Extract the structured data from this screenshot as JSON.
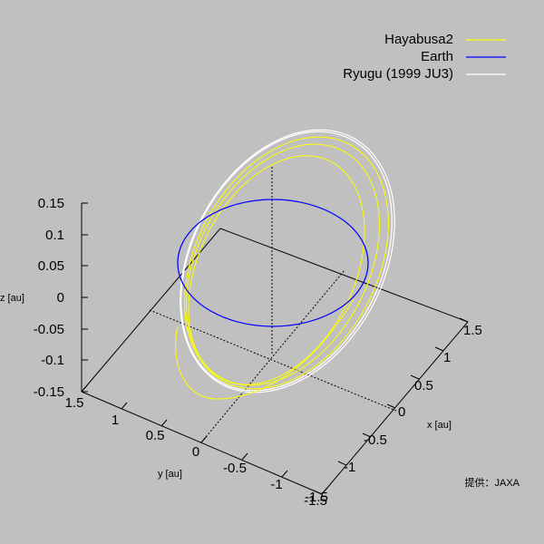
{
  "chart_data": {
    "type": "line",
    "projection": "3d",
    "grid": false,
    "legend_position": "top-right",
    "background": "#c0c0c0",
    "xlabel": "x [au]",
    "ylabel": "y [au]",
    "zlabel": "z [au]",
    "xlim": [
      -1.5,
      1.5
    ],
    "ylim": [
      -1.5,
      1.5
    ],
    "zlim": [
      -0.15,
      0.15
    ],
    "x_ticks": [
      "1.5",
      "1",
      "0.5",
      "0",
      "-0.5",
      "-1",
      "-1.5"
    ],
    "y_ticks": [
      "1.5",
      "1",
      "0.5",
      "0",
      "-0.5",
      "-1",
      "-1.5"
    ],
    "z_ticks": [
      "0.15",
      "0.1",
      "0.05",
      "0",
      "-0.05",
      "-0.1",
      "-0.15"
    ],
    "series": [
      {
        "name": "Hayabusa2",
        "color": "#ffff00",
        "description": "transfer trajectory, elliptical loops between Earth and Ryugu orbits"
      },
      {
        "name": "Earth",
        "color": "#0000ff",
        "semi_major_axis_au": 1.0,
        "eccentricity": 0.017,
        "inclination_deg": 0
      },
      {
        "name": "Ryugu (1999 JU3)",
        "color": "#ffffff",
        "semi_major_axis_au": 1.19,
        "eccentricity": 0.19,
        "inclination_deg": 5.9
      }
    ],
    "credit": "提供：JAXA"
  }
}
